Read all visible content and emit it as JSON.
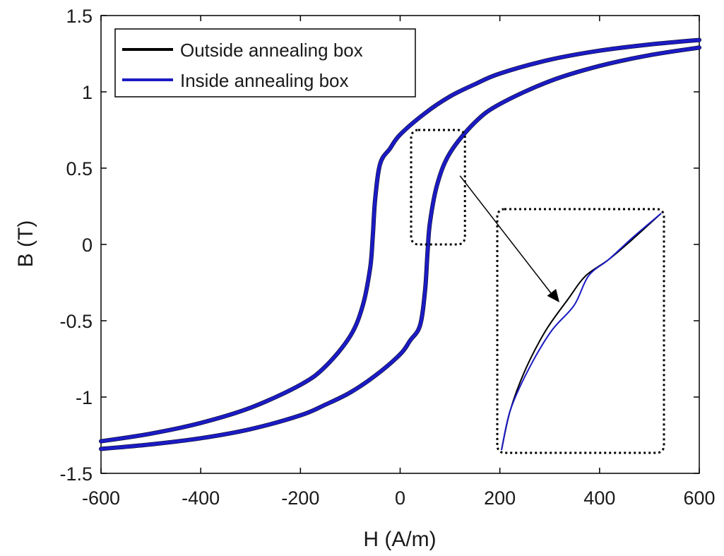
{
  "chart_data": {
    "type": "line",
    "title": "",
    "xlabel": "H (A/m)",
    "ylabel": "B (T)",
    "xlim": [
      -600,
      600
    ],
    "ylim": [
      -1.5,
      1.5
    ],
    "xticks": [
      -600,
      -400,
      -200,
      0,
      200,
      400,
      600
    ],
    "xtick_labels": [
      "-600",
      "-400",
      "-200",
      "0",
      "200",
      "400",
      "600"
    ],
    "yticks": [
      -1.5,
      -1,
      -0.5,
      0,
      0.5,
      1,
      1.5
    ],
    "ytick_labels": [
      "-1.5",
      "-1",
      "-0.5",
      "0",
      "0.5",
      "1",
      "1.5"
    ],
    "grid": false,
    "legend_position": "top-left",
    "series": [
      {
        "name": "Outside annealing box",
        "color": "#000000",
        "branches": [
          {
            "x": [
              -600,
              -500,
              -400,
              -300,
              -200,
              -150,
              -100,
              -75,
              -60,
              -55,
              -50,
              -40,
              -20,
              0,
              50,
              100,
              150,
              200,
              300,
              400,
              500,
              600
            ],
            "y": [
              -1.29,
              -1.24,
              -1.17,
              -1.07,
              -0.92,
              -0.8,
              -0.6,
              -0.4,
              -0.15,
              0.05,
              0.3,
              0.53,
              0.63,
              0.72,
              0.86,
              0.97,
              1.05,
              1.12,
              1.21,
              1.27,
              1.31,
              1.34
            ]
          },
          {
            "x": [
              -600,
              -500,
              -400,
              -300,
              -200,
              -150,
              -100,
              -50,
              0,
              20,
              40,
              50,
              55,
              60,
              75,
              100,
              150,
              200,
              300,
              400,
              500,
              600
            ],
            "y": [
              -1.34,
              -1.31,
              -1.27,
              -1.21,
              -1.12,
              -1.05,
              -0.97,
              -0.86,
              -0.72,
              -0.63,
              -0.53,
              -0.3,
              -0.05,
              0.15,
              0.4,
              0.6,
              0.8,
              0.92,
              1.07,
              1.17,
              1.24,
              1.29
            ]
          }
        ]
      },
      {
        "name": "Inside annealing box",
        "color": "#1b1bc4",
        "branches": [
          {
            "x": [
              -600,
              -500,
              -400,
              -300,
              -200,
              -150,
              -100,
              -75,
              -60,
              -55,
              -50,
              -40,
              -20,
              0,
              50,
              100,
              150,
              200,
              300,
              400,
              500,
              600
            ],
            "y": [
              -1.29,
              -1.24,
              -1.17,
              -1.07,
              -0.92,
              -0.8,
              -0.6,
              -0.4,
              -0.15,
              0.05,
              0.3,
              0.53,
              0.63,
              0.72,
              0.86,
              0.97,
              1.05,
              1.12,
              1.21,
              1.27,
              1.31,
              1.34
            ]
          },
          {
            "x": [
              -600,
              -500,
              -400,
              -300,
              -200,
              -150,
              -100,
              -50,
              0,
              20,
              40,
              50,
              55,
              60,
              75,
              100,
              150,
              200,
              300,
              400,
              500,
              600
            ],
            "y": [
              -1.34,
              -1.31,
              -1.27,
              -1.21,
              -1.12,
              -1.05,
              -0.97,
              -0.86,
              -0.72,
              -0.63,
              -0.53,
              -0.3,
              -0.05,
              0.15,
              0.4,
              0.6,
              0.8,
              0.92,
              1.07,
              1.17,
              1.24,
              1.29
            ]
          }
        ]
      }
    ],
    "annotations": {
      "zoom_region": {
        "x": [
          30,
          130
        ],
        "y": [
          0,
          0.75
        ]
      },
      "inset_note": "magnified view of the zoom region"
    }
  }
}
